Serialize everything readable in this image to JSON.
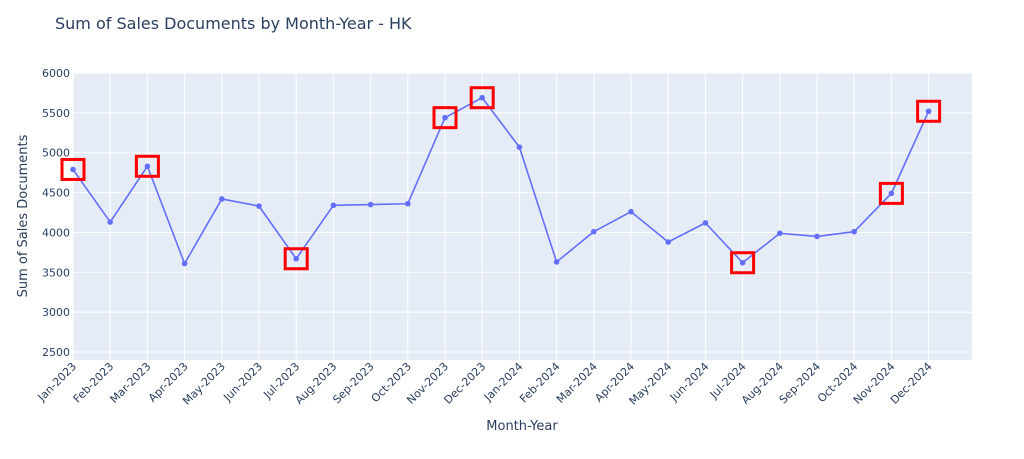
{
  "chart_data": {
    "type": "line",
    "title": "Sum of Sales Documents by Month-Year - HK",
    "xlabel": "Month-Year",
    "ylabel": "Sum of Sales Documents",
    "ylim": [
      2400,
      6000
    ],
    "yticks": [
      2500,
      3000,
      3500,
      4000,
      4500,
      5000,
      5500,
      6000
    ],
    "grid": true,
    "categories": [
      "Jan-2023",
      "Feb-2023",
      "Mar-2023",
      "Apr-2023",
      "May-2023",
      "Jun-2023",
      "Jul-2023",
      "Aug-2023",
      "Sep-2023",
      "Oct-2023",
      "Nov-2023",
      "Dec-2023",
      "Jan-2024",
      "Feb-2024",
      "Mar-2024",
      "Apr-2024",
      "May-2024",
      "Jun-2024",
      "Jul-2024",
      "Aug-2024",
      "Sep-2024",
      "Oct-2024",
      "Nov-2024",
      "Dec-2024"
    ],
    "series": [
      {
        "values": [
          4790,
          4130,
          4830,
          3610,
          4420,
          4330,
          3670,
          4340,
          4350,
          4360,
          5440,
          5690,
          5070,
          3630,
          4010,
          4260,
          3880,
          4120,
          3620,
          3990,
          3950,
          4010,
          4490,
          5520
        ],
        "color": "#636efa"
      }
    ],
    "highlighted_points": [
      "Jan-2023",
      "Mar-2023",
      "Jul-2023",
      "Nov-2023",
      "Dec-2023",
      "Jul-2024",
      "Nov-2024",
      "Dec-2024"
    ],
    "highlight_color": "#ff0000",
    "plot_background": "#e5ecf6"
  }
}
